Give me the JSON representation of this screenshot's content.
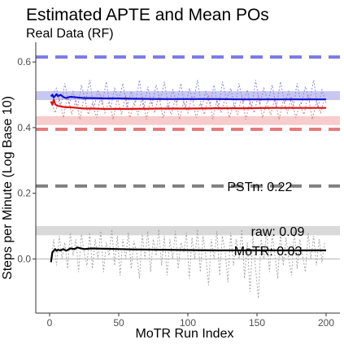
{
  "chart_data": {
    "type": "line",
    "title": "Estimated APTE and Mean POs",
    "subtitle": "Real Data (RF)",
    "xlabel": "MoTR Run Index",
    "ylabel": "Steps per Minute (Log Base 10)",
    "xlim": [
      -10,
      210
    ],
    "ylim": [
      -0.165,
      0.66
    ],
    "x_ticks": [
      0,
      50,
      100,
      150,
      200
    ],
    "x_tick_labels": [
      "0",
      "50",
      "100",
      "150",
      "200"
    ],
    "y_ticks": [
      0.0,
      0.2,
      0.4,
      0.6
    ],
    "y_tick_labels": [
      "0.0",
      "0.2",
      "0.4",
      "0.6"
    ],
    "grid": false,
    "legend": "none",
    "reference_lines": [
      {
        "y": 0.615,
        "color": "#7a7ae6",
        "style": "dashed"
      },
      {
        "y": 0.395,
        "color": "#e67a7a",
        "style": "dashed"
      },
      {
        "y": 0.222,
        "color": "#7f7f7f",
        "style": "dashed"
      }
    ],
    "bands": [
      {
        "y0": 0.484,
        "y1": 0.511,
        "color": "#c7c7f2"
      },
      {
        "y0": 0.408,
        "y1": 0.435,
        "color": "#f7cccc"
      },
      {
        "y0": 0.072,
        "y1": 0.1,
        "color": "#d9d9d9"
      }
    ],
    "annotations": [
      {
        "text": "PSTn: 0.22",
        "x": 152,
        "y": 0.222
      },
      {
        "text": "raw: 0.09",
        "x": 165,
        "y": 0.085
      },
      {
        "text": "MoTR: 0.03",
        "x": 158,
        "y": 0.026
      }
    ],
    "series": [
      {
        "color": "#1010d0",
        "x": [
          1,
          2,
          3,
          4,
          5,
          6,
          8,
          10,
          12,
          15,
          20,
          25,
          30,
          40,
          50,
          60,
          80,
          100,
          120,
          140,
          160,
          180,
          200
        ],
        "values": [
          0.495,
          0.5,
          0.492,
          0.497,
          0.502,
          0.496,
          0.5,
          0.493,
          0.49,
          0.494,
          0.492,
          0.49,
          0.49,
          0.489,
          0.489,
          0.488,
          0.487,
          0.487,
          0.487,
          0.486,
          0.486,
          0.486,
          0.486
        ]
      },
      {
        "color": "#dd1111",
        "x": [
          1,
          2,
          3,
          4,
          5,
          6,
          8,
          10,
          12,
          15,
          20,
          25,
          30,
          40,
          50,
          60,
          80,
          100,
          120,
          140,
          160,
          180,
          200
        ],
        "values": [
          0.48,
          0.47,
          0.485,
          0.472,
          0.468,
          0.466,
          0.465,
          0.463,
          0.462,
          0.462,
          0.46,
          0.458,
          0.458,
          0.457,
          0.457,
          0.457,
          0.458,
          0.458,
          0.459,
          0.459,
          0.46,
          0.46,
          0.46
        ]
      },
      {
        "color": "#000000",
        "x": [
          1,
          2,
          3,
          4,
          5,
          6,
          8,
          10,
          12,
          15,
          18,
          20,
          25,
          30,
          40,
          50,
          60,
          80,
          100,
          120,
          140,
          160,
          180,
          200
        ],
        "values": [
          -0.01,
          0.02,
          0.025,
          0.03,
          0.025,
          0.028,
          0.026,
          0.03,
          0.025,
          0.032,
          0.03,
          0.035,
          0.03,
          0.032,
          0.031,
          0.03,
          0.029,
          0.028,
          0.027,
          0.026,
          0.026,
          0.026,
          0.026,
          0.026
        ]
      }
    ],
    "raw_series": [
      {
        "color": "#d08585",
        "style": "dotted",
        "x": [
          1,
          4,
          7,
          10,
          13,
          16,
          19,
          22,
          25,
          28,
          31,
          34,
          37,
          40,
          43,
          46,
          49,
          52,
          55,
          58,
          61,
          64,
          67,
          70,
          73,
          76,
          79,
          82,
          85,
          88,
          91,
          94,
          97,
          100,
          103,
          106,
          109,
          112,
          115,
          118,
          121,
          124,
          127,
          130,
          133,
          136,
          139,
          142,
          145,
          148,
          151,
          154,
          157,
          160,
          163,
          166,
          169,
          172,
          175,
          178,
          181,
          184,
          187,
          190,
          193,
          196,
          199
        ],
        "values": [
          0.48,
          0.445,
          0.49,
          0.43,
          0.5,
          0.44,
          0.485,
          0.425,
          0.495,
          0.44,
          0.475,
          0.43,
          0.5,
          0.445,
          0.48,
          0.425,
          0.49,
          0.44,
          0.5,
          0.43,
          0.475,
          0.44,
          0.495,
          0.425,
          0.485,
          0.445,
          0.5,
          0.43,
          0.47,
          0.44,
          0.49,
          0.425,
          0.48,
          0.445,
          0.495,
          0.43,
          0.475,
          0.44,
          0.5,
          0.425,
          0.485,
          0.445,
          0.49,
          0.43,
          0.47,
          0.44,
          0.495,
          0.425,
          0.48,
          0.445,
          0.5,
          0.43,
          0.475,
          0.44,
          0.49,
          0.425,
          0.485,
          0.445,
          0.495,
          0.43,
          0.47,
          0.44,
          0.5,
          0.425,
          0.48,
          0.445,
          0.49
        ]
      },
      {
        "color": "#8c8cd6",
        "style": "dotted",
        "x": [
          2,
          5,
          8,
          11,
          14,
          17,
          20,
          23,
          26,
          29,
          32,
          35,
          38,
          41,
          44,
          47,
          50,
          53,
          56,
          59,
          62,
          65,
          68,
          71,
          74,
          77,
          80,
          83,
          86,
          89,
          92,
          95,
          98,
          101,
          104,
          107,
          110,
          113,
          116,
          119,
          122,
          125,
          128,
          131,
          134,
          137,
          140,
          143,
          146,
          149,
          152,
          155,
          158,
          161,
          164,
          167,
          170,
          173,
          176,
          179,
          182,
          185,
          188,
          191,
          194,
          197,
          200
        ],
        "values": [
          0.5,
          0.52,
          0.46,
          0.535,
          0.47,
          0.51,
          0.455,
          0.53,
          0.48,
          0.545,
          0.46,
          0.515,
          0.47,
          0.54,
          0.455,
          0.52,
          0.485,
          0.535,
          0.46,
          0.51,
          0.475,
          0.545,
          0.455,
          0.525,
          0.47,
          0.53,
          0.48,
          0.54,
          0.46,
          0.515,
          0.475,
          0.535,
          0.455,
          0.52,
          0.48,
          0.545,
          0.46,
          0.51,
          0.47,
          0.53,
          0.455,
          0.54,
          0.485,
          0.52,
          0.46,
          0.535,
          0.475,
          0.515,
          0.455,
          0.545,
          0.47,
          0.52,
          0.48,
          0.53,
          0.46,
          0.54,
          0.475,
          0.51,
          0.455,
          0.535,
          0.47,
          0.525,
          0.48,
          0.545,
          0.46,
          0.515,
          0.475
        ]
      },
      {
        "color": "#a6a6a6",
        "style": "dotted",
        "x": [
          1,
          3,
          5,
          7,
          9,
          11,
          13,
          15,
          17,
          19,
          21,
          23,
          25,
          27,
          29,
          31,
          33,
          35,
          37,
          39,
          41,
          43,
          45,
          47,
          49,
          51,
          53,
          55,
          57,
          59,
          61,
          63,
          65,
          67,
          69,
          71,
          73,
          75,
          77,
          79,
          81,
          83,
          85,
          87,
          89,
          91,
          93,
          95,
          97,
          99,
          101,
          103,
          105,
          107,
          109,
          111,
          113,
          115,
          117,
          119,
          121,
          123,
          125,
          127,
          129,
          131,
          133,
          135,
          137,
          139,
          141,
          143,
          145,
          147,
          149,
          151,
          153,
          155,
          157,
          159,
          161,
          163,
          165,
          167,
          169,
          171,
          173,
          175,
          177,
          179,
          181,
          183,
          185,
          187,
          189,
          191,
          193,
          195,
          197,
          199
        ],
        "values": [
          -0.01,
          0.06,
          -0.02,
          0.07,
          0.0,
          0.05,
          -0.03,
          0.08,
          0.01,
          0.06,
          -0.04,
          0.075,
          0.02,
          -0.02,
          0.08,
          -0.03,
          0.06,
          0.0,
          0.085,
          -0.04,
          0.05,
          0.01,
          0.09,
          -0.02,
          0.07,
          -0.05,
          0.06,
          0.0,
          0.08,
          -0.03,
          0.055,
          0.02,
          -0.06,
          0.075,
          0.0,
          0.085,
          -0.04,
          0.06,
          0.01,
          0.09,
          -0.02,
          0.07,
          -0.05,
          0.06,
          0.0,
          0.085,
          -0.03,
          0.05,
          0.02,
          0.08,
          -0.06,
          0.065,
          0.0,
          0.09,
          -0.04,
          0.07,
          0.01,
          -0.08,
          0.06,
          0.0,
          0.085,
          -0.05,
          0.07,
          0.02,
          -0.07,
          0.08,
          -0.02,
          0.06,
          0.0,
          0.09,
          -0.06,
          0.05,
          -0.1,
          0.07,
          -0.03,
          -0.12,
          0.06,
          0.0,
          0.085,
          -0.04,
          0.07,
          0.01,
          -0.06,
          0.08,
          -0.02,
          0.065,
          0.0,
          -0.05,
          0.09,
          -0.03,
          0.06,
          0.01,
          -0.04,
          0.08,
          0.0,
          0.07,
          -0.02,
          0.06,
          -0.01,
          0.05
        ]
      }
    ]
  }
}
